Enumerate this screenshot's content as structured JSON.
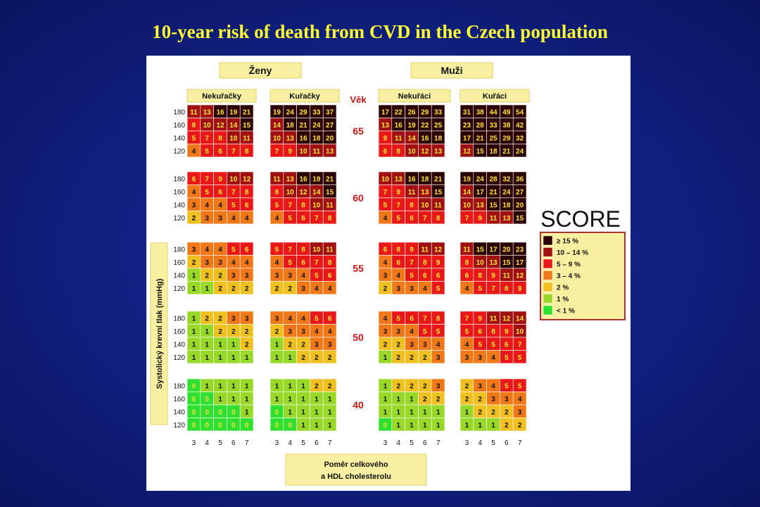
{
  "slide": {
    "title": "10-year risk of death from CVD in the Czech population"
  },
  "chart_data": {
    "type": "heatmap",
    "title": "SCORE",
    "groups": [
      {
        "label": "Ženy",
        "subgroups": [
          "Nekuřačky",
          "Kuřačky"
        ]
      },
      {
        "label": "Muži",
        "subgroups": [
          "Nekuřáci",
          "Kuřáci"
        ]
      }
    ],
    "age_header": "Věk",
    "ages": [
      "65",
      "60",
      "55",
      "50",
      "40"
    ],
    "sbp_labels": [
      "180",
      "160",
      "140",
      "120"
    ],
    "chol_labels": [
      "3",
      "4",
      "5",
      "6",
      "7"
    ],
    "ylabel": "Systolický krevní tlak (mmHg)",
    "xlabel_line1": "Poměr celkového",
    "xlabel_line2": "a HDL cholesterolu",
    "legend": [
      {
        "label": "≥ 15 %",
        "color": "#2a0000"
      },
      {
        "label": "10 – 14 %",
        "color": "#a01010"
      },
      {
        "label": "5 – 9 %",
        "color": "#e81818"
      },
      {
        "label": "3 – 4 %",
        "color": "#f07818"
      },
      {
        "label": "2 %",
        "color": "#f0c020"
      },
      {
        "label": "1 %",
        "color": "#98d828"
      },
      {
        "label": "< 1 %",
        "color": "#30e030"
      }
    ],
    "tables": [
      [
        [
          [
            11,
            13,
            16,
            19,
            21
          ],
          [
            8,
            10,
            12,
            14,
            15
          ],
          [
            5,
            7,
            8,
            10,
            11
          ],
          [
            4,
            5,
            6,
            7,
            8
          ]
        ],
        [
          [
            6,
            7,
            9,
            10,
            12
          ],
          [
            4,
            5,
            6,
            7,
            8
          ],
          [
            3,
            4,
            4,
            5,
            6
          ],
          [
            2,
            3,
            3,
            4,
            4
          ]
        ],
        [
          [
            3,
            4,
            4,
            5,
            6
          ],
          [
            2,
            3,
            3,
            4,
            4
          ],
          [
            1,
            2,
            2,
            3,
            3
          ],
          [
            1,
            1,
            2,
            2,
            2
          ]
        ],
        [
          [
            1,
            2,
            2,
            3,
            3
          ],
          [
            1,
            1,
            2,
            2,
            2
          ],
          [
            1,
            1,
            1,
            1,
            2
          ],
          [
            1,
            1,
            1,
            1,
            1
          ]
        ],
        [
          [
            0,
            1,
            1,
            1,
            1
          ],
          [
            0,
            0,
            1,
            1,
            1
          ],
          [
            0,
            0,
            0,
            0,
            1
          ],
          [
            0,
            0,
            0,
            0,
            0
          ]
        ]
      ],
      [
        [
          [
            19,
            24,
            29,
            33,
            37
          ],
          [
            14,
            18,
            21,
            24,
            27
          ],
          [
            10,
            13,
            16,
            18,
            20
          ],
          [
            7,
            9,
            10,
            11,
            13
          ]
        ],
        [
          [
            11,
            13,
            16,
            19,
            21
          ],
          [
            8,
            10,
            12,
            14,
            15
          ],
          [
            5,
            7,
            8,
            10,
            11
          ],
          [
            4,
            5,
            6,
            7,
            8
          ]
        ],
        [
          [
            5,
            7,
            8,
            10,
            11
          ],
          [
            4,
            5,
            6,
            7,
            8
          ],
          [
            3,
            3,
            4,
            5,
            6
          ],
          [
            2,
            2,
            3,
            4,
            4
          ]
        ],
        [
          [
            3,
            4,
            4,
            5,
            6
          ],
          [
            2,
            3,
            3,
            4,
            4
          ],
          [
            1,
            2,
            2,
            3,
            3
          ],
          [
            1,
            1,
            2,
            2,
            2
          ]
        ],
        [
          [
            1,
            1,
            1,
            2,
            2
          ],
          [
            1,
            1,
            1,
            1,
            1
          ],
          [
            0,
            1,
            1,
            1,
            1
          ],
          [
            0,
            0,
            1,
            1,
            1
          ]
        ]
      ],
      [
        [
          [
            17,
            22,
            26,
            29,
            33
          ],
          [
            13,
            16,
            19,
            22,
            25
          ],
          [
            9,
            11,
            14,
            16,
            18
          ],
          [
            6,
            8,
            10,
            12,
            13
          ]
        ],
        [
          [
            10,
            13,
            16,
            18,
            21
          ],
          [
            7,
            9,
            11,
            13,
            15
          ],
          [
            5,
            7,
            8,
            10,
            11
          ],
          [
            4,
            5,
            6,
            7,
            8
          ]
        ],
        [
          [
            6,
            8,
            9,
            11,
            12
          ],
          [
            4,
            6,
            7,
            8,
            9
          ],
          [
            3,
            4,
            5,
            6,
            6
          ],
          [
            2,
            3,
            3,
            4,
            5
          ]
        ],
        [
          [
            4,
            5,
            6,
            7,
            8
          ],
          [
            3,
            3,
            4,
            5,
            5
          ],
          [
            2,
            2,
            3,
            3,
            4
          ],
          [
            1,
            2,
            2,
            2,
            3
          ]
        ],
        [
          [
            1,
            2,
            2,
            2,
            3
          ],
          [
            1,
            1,
            1,
            2,
            2
          ],
          [
            1,
            1,
            1,
            1,
            1
          ],
          [
            0,
            1,
            1,
            1,
            1
          ]
        ]
      ],
      [
        [
          [
            31,
            38,
            44,
            49,
            54
          ],
          [
            23,
            28,
            33,
            38,
            42
          ],
          [
            17,
            21,
            25,
            29,
            32
          ],
          [
            12,
            15,
            18,
            21,
            24
          ]
        ],
        [
          [
            19,
            24,
            28,
            32,
            36
          ],
          [
            14,
            17,
            21,
            24,
            27
          ],
          [
            10,
            13,
            15,
            18,
            20
          ],
          [
            7,
            9,
            11,
            13,
            15
          ]
        ],
        [
          [
            11,
            15,
            17,
            20,
            23
          ],
          [
            8,
            10,
            13,
            15,
            17
          ],
          [
            6,
            8,
            9,
            11,
            12
          ],
          [
            4,
            5,
            7,
            8,
            9
          ]
        ],
        [
          [
            7,
            9,
            11,
            12,
            14
          ],
          [
            5,
            6,
            8,
            9,
            10
          ],
          [
            4,
            5,
            5,
            6,
            7
          ],
          [
            3,
            3,
            4,
            5,
            5
          ]
        ],
        [
          [
            2,
            3,
            4,
            5,
            5
          ],
          [
            2,
            2,
            3,
            3,
            4
          ],
          [
            1,
            2,
            2,
            2,
            3
          ],
          [
            1,
            1,
            1,
            2,
            2
          ]
        ]
      ]
    ]
  }
}
